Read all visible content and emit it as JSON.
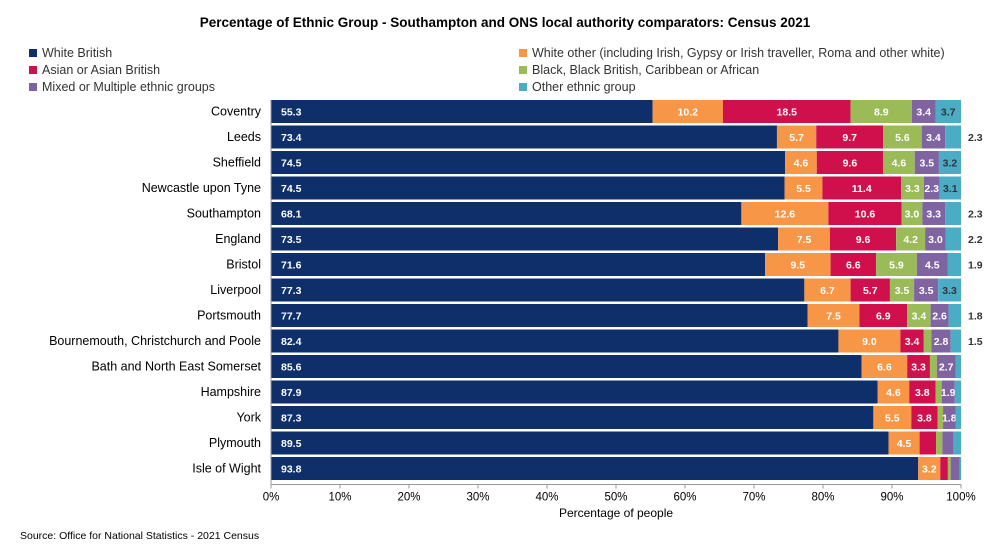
{
  "chart_data": {
    "type": "bar",
    "orientation": "horizontal",
    "stacked": "percent",
    "title": "Percentage of Ethnic Group - Southampton and ONS local authority comparators: Census 2021",
    "xlabel": "Percentage of people",
    "ylabel": "",
    "xlim": [
      0,
      100
    ],
    "x_ticks": [
      "0%",
      "10%",
      "20%",
      "30%",
      "40%",
      "50%",
      "60%",
      "70%",
      "80%",
      "90%",
      "100%"
    ],
    "grid": false,
    "legend_position": "top",
    "source": "Source: Office for National Statistics - 2021 Census",
    "categories": [
      "Coventry",
      "Leeds",
      "Sheffield",
      "Newcastle upon Tyne",
      "Southampton",
      "England",
      "Bristol",
      "Liverpool",
      "Portsmouth",
      "Bournemouth, Christchurch and Poole",
      "Bath and North East Somerset",
      "Hampshire",
      "York",
      "Plymouth",
      "Isle of Wight"
    ],
    "series": [
      {
        "name": "White British",
        "color": "#0f2f6b",
        "label_color": "#ffffff",
        "values": [
          55.3,
          73.4,
          74.5,
          74.5,
          68.1,
          73.5,
          71.6,
          77.3,
          77.7,
          82.4,
          85.6,
          87.9,
          87.3,
          89.5,
          93.8
        ],
        "labels": [
          "55.3",
          "73.4",
          "74.5",
          "74.5",
          "68.1",
          "73.5",
          "71.6",
          "77.3",
          "77.7",
          "82.4",
          "85.6",
          "87.9",
          "87.3",
          "89.5",
          "93.8"
        ]
      },
      {
        "name": "White other (including Irish, Gypsy or Irish traveller, Roma and other white)",
        "color": "#f79646",
        "label_color": "#ffffff",
        "values": [
          10.2,
          5.7,
          4.6,
          5.5,
          12.6,
          7.5,
          9.5,
          6.7,
          7.5,
          9.0,
          6.6,
          4.6,
          5.5,
          4.5,
          3.2
        ],
        "labels": [
          "10.2",
          "5.7",
          "4.6",
          "5.5",
          "12.6",
          "7.5",
          "9.5",
          "6.7",
          "7.5",
          "9.0",
          "6.6",
          "4.6",
          "5.5",
          "4.5",
          "3.2"
        ]
      },
      {
        "name": "Asian or Asian British",
        "color": "#d0104c",
        "label_color": "#ffffff",
        "values": [
          18.5,
          9.7,
          9.6,
          11.4,
          10.6,
          9.6,
          6.6,
          5.7,
          6.9,
          3.4,
          3.3,
          3.8,
          3.8,
          2.4,
          1.1
        ],
        "labels": [
          "18.5",
          "9.7",
          "9.6",
          "11.4",
          "10.6",
          "9.6",
          "6.6",
          "5.7",
          "6.9",
          "3.4",
          "3.3",
          "3.8",
          "3.8",
          "",
          ""
        ]
      },
      {
        "name": "Black, Black British, Caribbean or African",
        "color": "#9bbb59",
        "label_color": "#ffffff",
        "values": [
          8.9,
          5.6,
          4.6,
          3.3,
          3.0,
          4.2,
          5.9,
          3.5,
          3.4,
          1.1,
          1.0,
          0.9,
          0.8,
          0.9,
          0.4
        ],
        "labels": [
          "8.9",
          "5.6",
          "4.6",
          "3.3",
          "3.0",
          "4.2",
          "5.9",
          "3.5",
          "3.4",
          "",
          "",
          "",
          "",
          "",
          ""
        ]
      },
      {
        "name": "Mixed or Multiple ethnic groups",
        "color": "#8064a2",
        "label_color": "#ffffff",
        "values": [
          3.4,
          3.4,
          3.5,
          2.3,
          3.3,
          3.0,
          4.5,
          3.5,
          2.6,
          2.8,
          2.7,
          1.9,
          1.8,
          1.6,
          1.3
        ],
        "labels": [
          "3.4",
          "3.4",
          "3.5",
          "2.3",
          "3.3",
          "3.0",
          "4.5",
          "3.5",
          "2.6",
          "2.8",
          "2.7",
          "1.9",
          "1.8",
          "",
          ""
        ]
      },
      {
        "name": "Other ethnic group",
        "color": "#4bacc6",
        "label_color": "#333333",
        "values": [
          3.7,
          2.3,
          3.2,
          3.1,
          2.3,
          2.2,
          1.9,
          3.3,
          1.8,
          1.5,
          0.8,
          0.9,
          0.8,
          1.1,
          0.2
        ],
        "labels": [
          "3.7",
          "2.3",
          "3.2",
          "3.1",
          "2.3",
          "2.2",
          "1.9",
          "3.3",
          "1.8",
          "1.5",
          "",
          "",
          "",
          "",
          ""
        ]
      }
    ]
  }
}
